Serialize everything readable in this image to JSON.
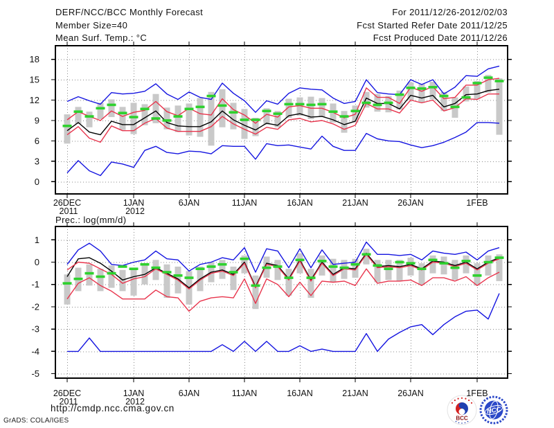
{
  "header": {
    "left": [
      "DERF/NCC/BCC Monthly Forecast",
      "Member Size=40"
    ],
    "right": [
      "For 2011/12/26-2012/02/03",
      "Fcst Started Refer Date 2011/12/25",
      "Fcst Produced Date 2011/12/26"
    ]
  },
  "colors": {
    "max_min": "#1414e0",
    "quartiles": "#e8344c",
    "mean": "#000000",
    "obs_dash": "#2ed12e",
    "spread_bar": "#c9c9c9",
    "grid": "#8a8a8a",
    "bcc_red": "#d42020",
    "bcc_blue": "#2040b0",
    "ncc_blue": "#2b48c8"
  },
  "chart_data": [
    {
      "type": "line",
      "title": "Mean Surf. Temp.: °C",
      "ylabel": "°C",
      "ylim": [
        -1.8,
        20.0
      ],
      "yticks": [
        0,
        3,
        6,
        9,
        12,
        15,
        18
      ],
      "grid": true,
      "n_points": 40,
      "x_ticks": [
        {
          "day": 0,
          "label": "26DEC",
          "year": "2011"
        },
        {
          "day": 6,
          "label": "1JAN",
          "year": "2012"
        },
        {
          "day": 11,
          "label": "6JAN"
        },
        {
          "day": 16,
          "label": "11JAN"
        },
        {
          "day": 21,
          "label": "16JAN"
        },
        {
          "day": 26,
          "label": "21JAN"
        },
        {
          "day": 31,
          "label": "26JAN"
        },
        {
          "day": 37,
          "label": "1FEB"
        }
      ],
      "series": [
        {
          "name": "ensemble max",
          "color": "#1414e0",
          "values": [
            11.8,
            12.5,
            11.9,
            11.4,
            13.1,
            12.9,
            13.0,
            13.3,
            14.4,
            12.9,
            12.1,
            13.2,
            12.4,
            12.1,
            14.5,
            13.0,
            11.9,
            10.2,
            11.9,
            11.4,
            13.0,
            13.8,
            13.6,
            13.5,
            12.3,
            11.5,
            11.8,
            15.0,
            13.1,
            12.9,
            12.8,
            15.0,
            14.3,
            15.0,
            12.9,
            13.9,
            15.6,
            15.5,
            16.6,
            17.0
          ]
        },
        {
          "name": "upper quartile",
          "color": "#e8344c",
          "values": [
            9.1,
            10.3,
            9.6,
            9.0,
            10.4,
            9.6,
            10.2,
            10.5,
            11.8,
            10.3,
            9.7,
            10.8,
            10.0,
            9.8,
            12.2,
            10.6,
            9.8,
            8.6,
            9.9,
            9.5,
            11.0,
            11.2,
            10.8,
            10.8,
            10.2,
            9.4,
            9.9,
            13.8,
            12.4,
            12.4,
            11.5,
            13.9,
            13.3,
            14.0,
            12.2,
            12.4,
            14.2,
            14.2,
            15.0,
            15.2
          ]
        },
        {
          "name": "ensemble mean",
          "color": "#000000",
          "values": [
            7.5,
            8.7,
            7.3,
            6.9,
            8.9,
            8.4,
            8.4,
            9.4,
            10.4,
            8.7,
            8.2,
            8.1,
            8.1,
            8.8,
            10.4,
            9.1,
            8.3,
            7.6,
            8.6,
            8.3,
            9.7,
            10.0,
            9.5,
            9.6,
            9.1,
            8.4,
            8.9,
            12.3,
            11.5,
            11.5,
            10.7,
            12.7,
            12.3,
            12.7,
            11.0,
            11.5,
            12.8,
            12.9,
            13.4,
            13.6
          ]
        },
        {
          "name": "lower quartile",
          "color": "#e8344c",
          "values": [
            6.9,
            8.1,
            6.4,
            5.8,
            8.2,
            7.5,
            7.5,
            8.6,
            9.3,
            7.9,
            7.4,
            7.4,
            7.4,
            8.1,
            9.6,
            8.5,
            7.7,
            7.0,
            8.0,
            7.7,
            9.1,
            9.3,
            8.8,
            9.0,
            8.5,
            7.7,
            8.3,
            11.5,
            10.7,
            10.7,
            10.1,
            12.0,
            11.6,
            12.0,
            10.4,
            10.9,
            12.2,
            12.1,
            12.9,
            12.9
          ]
        },
        {
          "name": "ensemble min",
          "color": "#1414e0",
          "values": [
            1.3,
            3.1,
            1.6,
            0.9,
            2.9,
            2.6,
            2.1,
            4.6,
            5.2,
            4.3,
            4.1,
            4.5,
            4.4,
            4.1,
            5.3,
            5.2,
            5.2,
            3.3,
            5.6,
            5.3,
            5.4,
            5.1,
            4.8,
            6.7,
            5.2,
            4.6,
            4.6,
            7.1,
            6.3,
            6.0,
            5.9,
            5.4,
            5.0,
            5.3,
            5.8,
            6.5,
            7.3,
            8.7,
            8.7,
            8.6
          ]
        }
      ],
      "spread_bars": {
        "color": "#c9c9c9",
        "top": [
          9.9,
          11.0,
          10.3,
          11.6,
          12.1,
          11.0,
          11.6,
          11.4,
          12.9,
          10.9,
          11.2,
          11.5,
          12.3,
          13.2,
          13.6,
          11.6,
          10.7,
          9.4,
          10.8,
          10.4,
          12.2,
          12.4,
          12.5,
          12.3,
          11.5,
          10.4,
          11.2,
          13.2,
          12.9,
          12.6,
          13.4,
          14.6,
          14.4,
          14.7,
          13.2,
          12.4,
          14.0,
          14.8,
          15.7,
          15.2
        ],
        "bottom": [
          5.6,
          8.5,
          8.0,
          9.2,
          9.5,
          7.6,
          7.0,
          8.3,
          8.6,
          7.7,
          7.3,
          6.8,
          6.6,
          5.3,
          8.0,
          7.7,
          6.3,
          6.7,
          8.4,
          8.0,
          9.4,
          9.7,
          9.2,
          9.5,
          8.7,
          7.2,
          8.7,
          10.9,
          10.3,
          10.2,
          10.6,
          12.0,
          11.6,
          12.1,
          10.4,
          9.4,
          11.8,
          12.2,
          13.1,
          6.9
        ]
      },
      "obs_dashes": {
        "color": "#2ed12e",
        "values": [
          8.2,
          10.3,
          9.6,
          10.8,
          11.3,
          10.1,
          9.5,
          10.7,
          9.3,
          9.0,
          9.6,
          10.7,
          11.0,
          12.6,
          11.2,
          10.2,
          9.1,
          9.1,
          10.4,
          10.0,
          11.4,
          11.4,
          11.3,
          11.4,
          10.3,
          9.6,
          10.4,
          11.6,
          11.3,
          11.6,
          12.8,
          13.8,
          13.7,
          13.9,
          12.6,
          11.0,
          12.4,
          14.5,
          15.3,
          14.8
        ]
      }
    },
    {
      "type": "line",
      "title": "Prec.: log(mm/d)",
      "ylabel": "log(mm/d)",
      "ylim": [
        -5.2,
        1.6
      ],
      "yticks": [
        -5,
        -4,
        -3,
        -2,
        -1,
        0,
        1
      ],
      "grid": true,
      "n_points": 40,
      "x_ticks": [
        {
          "day": 0,
          "label": "26DEC",
          "year": "2011"
        },
        {
          "day": 6,
          "label": "1JAN",
          "year": "2012"
        },
        {
          "day": 11,
          "label": "6JAN"
        },
        {
          "day": 16,
          "label": "11JAN"
        },
        {
          "day": 21,
          "label": "16JAN"
        },
        {
          "day": 26,
          "label": "21JAN"
        },
        {
          "day": 31,
          "label": "26JAN"
        },
        {
          "day": 37,
          "label": "1FEB"
        }
      ],
      "series": [
        {
          "name": "ensemble max",
          "color": "#1414e0",
          "values": [
            -0.1,
            0.55,
            0.85,
            0.5,
            -0.1,
            -0.15,
            0.0,
            0.1,
            0.5,
            0.15,
            0.1,
            -0.4,
            -0.1,
            0.0,
            0.2,
            0.1,
            0.65,
            -0.45,
            0.6,
            0.5,
            -0.25,
            0.6,
            -0.25,
            0.55,
            -0.1,
            -0.05,
            0.0,
            0.9,
            0.35,
            0.35,
            0.3,
            0.35,
            0.1,
            0.5,
            0.4,
            0.35,
            0.45,
            0.1,
            0.5,
            0.65
          ]
        },
        {
          "name": "upper quartile",
          "color": "#e8344c",
          "values": [
            -0.35,
            0.0,
            -0.05,
            -0.3,
            -0.55,
            -0.95,
            -0.75,
            -0.65,
            -0.3,
            -0.55,
            -0.8,
            -1.2,
            -0.8,
            -0.5,
            -0.4,
            -0.6,
            -0.05,
            -1.15,
            -0.1,
            -0.2,
            -0.8,
            0.05,
            -0.85,
            -0.05,
            -0.6,
            -0.3,
            -0.35,
            0.35,
            -0.25,
            -0.2,
            -0.25,
            -0.15,
            -0.35,
            0.0,
            -0.05,
            -0.2,
            -0.05,
            -0.35,
            -0.05,
            0.15
          ]
        },
        {
          "name": "ensemble mean",
          "color": "#000000",
          "values": [
            -0.65,
            0.15,
            0.2,
            -0.05,
            -0.4,
            -0.8,
            -0.65,
            -0.55,
            -0.25,
            -0.5,
            -0.75,
            -1.15,
            -0.75,
            -0.45,
            -0.35,
            -0.55,
            0.0,
            -1.1,
            -0.05,
            -0.15,
            -0.75,
            0.1,
            -0.8,
            0.0,
            -0.55,
            -0.25,
            -0.3,
            0.4,
            -0.2,
            -0.15,
            -0.2,
            -0.1,
            -0.3,
            0.05,
            0.0,
            -0.15,
            0.0,
            -0.3,
            0.0,
            0.2
          ]
        },
        {
          "name": "lower quartile",
          "color": "#e8344c",
          "values": [
            -1.65,
            -0.95,
            -0.7,
            -1.05,
            -1.3,
            -1.65,
            -1.65,
            -1.65,
            -1.25,
            -1.55,
            -1.6,
            -2.2,
            -1.75,
            -1.6,
            -1.55,
            -1.6,
            -0.75,
            -1.85,
            -0.75,
            -1.0,
            -1.55,
            -0.9,
            -1.5,
            -0.85,
            -0.9,
            -0.85,
            -1.05,
            -0.3,
            -0.95,
            -0.85,
            -0.85,
            -0.8,
            -1.05,
            -0.7,
            -0.7,
            -0.85,
            -0.65,
            -1.05,
            -0.7,
            -0.45
          ]
        },
        {
          "name": "ensemble min",
          "color": "#1414e0",
          "values": [
            -4,
            -4,
            -3.4,
            -4,
            -4,
            -4,
            -4,
            -4,
            -4,
            -4,
            -4,
            -4,
            -4,
            -4,
            -3.7,
            -4,
            -3.55,
            -4,
            -3.55,
            -4,
            -4,
            -3.75,
            -4,
            -3.9,
            -4,
            -4,
            -4,
            -3.2,
            -4,
            -3.45,
            -3.15,
            -2.9,
            -2.8,
            -3.25,
            -2.8,
            -2.45,
            -2.2,
            -2.15,
            -2.55,
            -1.4
          ]
        }
      ],
      "spread_bars": {
        "color": "#c9c9c9",
        "top": [
          -0.55,
          -0.25,
          -0.1,
          -0.3,
          -0.15,
          -0.35,
          -0.3,
          -0.1,
          0.1,
          -0.1,
          -0.2,
          -0.4,
          -0.2,
          0.0,
          0.1,
          -0.2,
          0.3,
          -0.6,
          0.25,
          0.1,
          -0.3,
          0.4,
          -0.3,
          0.3,
          0.15,
          0.1,
          0.15,
          0.6,
          0.1,
          0.1,
          0.1,
          0.2,
          -0.05,
          0.3,
          0.25,
          0.1,
          0.3,
          -0.05,
          0.3,
          0.35
        ],
        "bottom": [
          -1.9,
          -1.3,
          -1.05,
          -1.3,
          -1.15,
          -1.3,
          -1.5,
          -1.0,
          -0.8,
          -1.6,
          -1.4,
          -1.9,
          -1.3,
          -0.9,
          -0.75,
          -1.25,
          -0.5,
          -2.1,
          -0.7,
          -0.8,
          -1.5,
          -0.5,
          -1.6,
          -0.6,
          -0.9,
          -0.75,
          -0.7,
          -0.1,
          -0.9,
          -0.8,
          -0.85,
          -0.6,
          -1.0,
          -0.5,
          -0.55,
          -0.8,
          -0.5,
          -1.05,
          -0.6,
          -0.85
        ]
      },
      "obs_dashes": {
        "color": "#2ed12e",
        "values": [
          -0.95,
          -0.75,
          -0.5,
          -0.65,
          -0.5,
          -0.2,
          -0.3,
          -0.1,
          -0.25,
          -0.45,
          -0.6,
          -0.7,
          -0.3,
          -0.2,
          -0.1,
          -0.45,
          0.15,
          -1.05,
          -0.25,
          -0.2,
          -0.7,
          0.1,
          -0.7,
          0.05,
          -0.2,
          -0.25,
          -0.1,
          0.35,
          -0.15,
          -0.3,
          0.0,
          -0.05,
          -0.3,
          0.1,
          -0.05,
          -0.25,
          0.05,
          -0.6,
          0.0,
          0.2
        ]
      }
    }
  ],
  "footer": {
    "url": "http://cmdp.ncc.cma.gov.cn",
    "signature": "GrADS: COLA/IGES",
    "logos": [
      {
        "label": "BCC"
      },
      {
        "label": "NCC"
      }
    ]
  }
}
